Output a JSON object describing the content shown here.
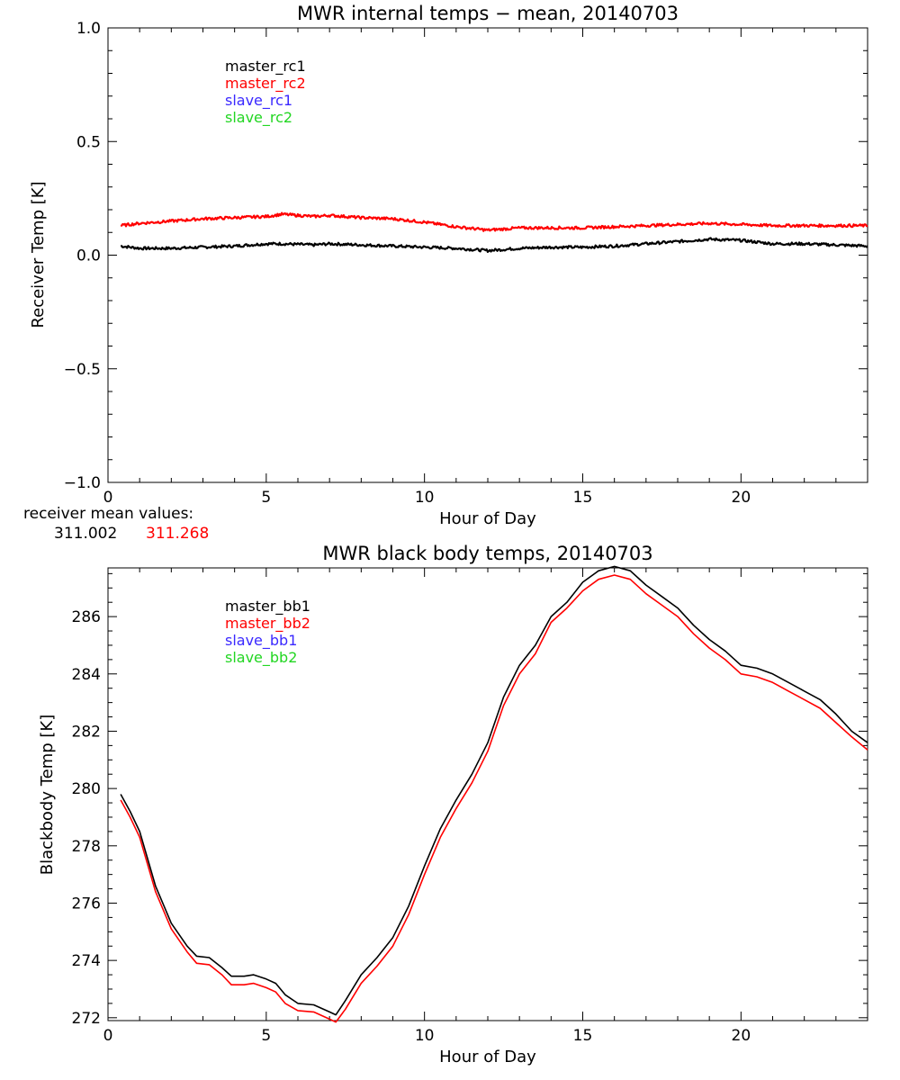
{
  "chart_data": [
    {
      "type": "line",
      "title": "MWR internal temps − mean, 20140703",
      "xlabel": "Hour of Day",
      "ylabel": "Receiver Temp [K]",
      "xlim": [
        0,
        24
      ],
      "ylim": [
        -1.0,
        1.0
      ],
      "x_ticks": [
        0,
        5,
        10,
        15,
        20
      ],
      "x_tick_labels": [
        "0",
        "5",
        "10",
        "15",
        "20"
      ],
      "y_ticks": [
        -1.0,
        -0.5,
        0.0,
        0.5,
        1.0
      ],
      "y_tick_labels": [
        "−1.0",
        "−0.5",
        "0.0",
        "0.5",
        "1.0"
      ],
      "grid": false,
      "legend_position": "top-left",
      "legend": [
        {
          "name": "master_rc1",
          "color": "#000000"
        },
        {
          "name": "master_rc2",
          "color": "#ff0000"
        },
        {
          "name": "slave_rc1",
          "color": "#3a28ff"
        },
        {
          "name": "slave_rc2",
          "color": "#22d622"
        }
      ],
      "series": [
        {
          "name": "master_rc1",
          "color": "#000000",
          "x": [
            0.4,
            1.0,
            2.0,
            3.0,
            4.0,
            5.0,
            5.5,
            6.5,
            7.0,
            8.0,
            9.0,
            10.0,
            11.0,
            12.0,
            13.0,
            14.0,
            15.0,
            16.0,
            17.0,
            18.0,
            19.0,
            20.0,
            21.0,
            22.0,
            23.0,
            24.0
          ],
          "y": [
            0.04,
            0.03,
            0.03,
            0.035,
            0.04,
            0.05,
            0.05,
            0.045,
            0.05,
            0.045,
            0.04,
            0.035,
            0.03,
            0.02,
            0.03,
            0.035,
            0.035,
            0.04,
            0.05,
            0.06,
            0.07,
            0.065,
            0.05,
            0.05,
            0.045,
            0.04
          ]
        },
        {
          "name": "master_rc2",
          "color": "#ff0000",
          "x": [
            0.4,
            1.0,
            2.0,
            3.0,
            4.0,
            5.0,
            5.5,
            6.5,
            7.0,
            8.0,
            9.0,
            10.0,
            11.0,
            12.0,
            13.0,
            14.0,
            15.0,
            16.0,
            17.0,
            18.0,
            19.0,
            20.0,
            21.0,
            22.0,
            23.0,
            24.0
          ],
          "y": [
            0.13,
            0.14,
            0.15,
            0.16,
            0.165,
            0.17,
            0.18,
            0.17,
            0.175,
            0.165,
            0.16,
            0.145,
            0.125,
            0.11,
            0.12,
            0.12,
            0.12,
            0.125,
            0.13,
            0.135,
            0.14,
            0.135,
            0.13,
            0.13,
            0.13,
            0.13
          ]
        }
      ],
      "annotation_label": "receiver mean values:",
      "annotation_values": [
        {
          "text": "311.002",
          "color": "#000000"
        },
        {
          "text": "311.268",
          "color": "#ff0000"
        }
      ]
    },
    {
      "type": "line",
      "title": "MWR black body temps, 20140703",
      "xlabel": "Hour of Day",
      "ylabel": "Blackbody Temp [K]",
      "xlim": [
        0,
        24
      ],
      "ylim": [
        271.9,
        287.7
      ],
      "x_ticks": [
        0,
        5,
        10,
        15,
        20
      ],
      "x_tick_labels": [
        "0",
        "5",
        "10",
        "15",
        "20"
      ],
      "y_ticks": [
        272,
        274,
        276,
        278,
        280,
        282,
        284,
        286
      ],
      "y_tick_labels": [
        "272",
        "274",
        "276",
        "278",
        "280",
        "282",
        "284",
        "286"
      ],
      "grid": false,
      "legend_position": "top-left",
      "legend": [
        {
          "name": "master_bb1",
          "color": "#000000"
        },
        {
          "name": "master_bb2",
          "color": "#ff0000"
        },
        {
          "name": "slave_bb1",
          "color": "#3a28ff"
        },
        {
          "name": "slave_bb2",
          "color": "#22d622"
        }
      ],
      "series": [
        {
          "name": "master_bb1",
          "color": "#000000",
          "x": [
            0.4,
            0.7,
            1.0,
            1.5,
            2.0,
            2.5,
            2.8,
            3.2,
            3.6,
            3.9,
            4.3,
            4.6,
            5.0,
            5.3,
            5.6,
            6.0,
            6.5,
            7.0,
            7.2,
            7.5,
            8.0,
            8.5,
            9.0,
            9.5,
            10.0,
            10.5,
            11.0,
            11.5,
            12.0,
            12.5,
            13.0,
            13.5,
            14.0,
            14.5,
            15.0,
            15.5,
            16.0,
            16.5,
            17.0,
            17.5,
            18.0,
            18.5,
            19.0,
            19.5,
            20.0,
            20.5,
            21.0,
            21.5,
            22.0,
            22.5,
            23.0,
            23.5,
            24.0
          ],
          "y": [
            279.8,
            279.2,
            278.5,
            276.6,
            275.3,
            274.5,
            274.15,
            274.1,
            273.75,
            273.45,
            273.45,
            273.5,
            273.35,
            273.2,
            272.8,
            272.5,
            272.45,
            272.2,
            272.1,
            272.6,
            273.5,
            274.1,
            274.8,
            275.9,
            277.3,
            278.6,
            279.6,
            280.5,
            281.6,
            283.2,
            284.3,
            285.0,
            286.0,
            286.5,
            287.2,
            287.6,
            287.75,
            287.6,
            287.1,
            286.7,
            286.3,
            285.7,
            285.2,
            284.8,
            284.3,
            284.2,
            284.0,
            283.7,
            283.4,
            283.1,
            282.6,
            282.0,
            281.6
          ]
        },
        {
          "name": "master_bb2",
          "color": "#ff0000",
          "x": [
            0.4,
            0.7,
            1.0,
            1.5,
            2.0,
            2.5,
            2.8,
            3.2,
            3.6,
            3.9,
            4.3,
            4.6,
            5.0,
            5.3,
            5.6,
            6.0,
            6.5,
            7.0,
            7.2,
            7.5,
            8.0,
            8.5,
            9.0,
            9.5,
            10.0,
            10.5,
            11.0,
            11.5,
            12.0,
            12.5,
            13.0,
            13.5,
            14.0,
            14.5,
            15.0,
            15.5,
            16.0,
            16.5,
            17.0,
            17.5,
            18.0,
            18.5,
            19.0,
            19.5,
            20.0,
            20.5,
            21.0,
            21.5,
            22.0,
            22.5,
            23.0,
            23.5,
            24.0
          ],
          "y": [
            279.6,
            279.0,
            278.3,
            276.4,
            275.1,
            274.3,
            273.9,
            273.85,
            273.5,
            273.15,
            273.15,
            273.2,
            273.05,
            272.9,
            272.5,
            272.25,
            272.2,
            271.95,
            271.85,
            272.3,
            273.2,
            273.8,
            274.5,
            275.6,
            277.0,
            278.3,
            279.3,
            280.2,
            281.3,
            282.9,
            284.0,
            284.7,
            285.8,
            286.3,
            286.9,
            287.3,
            287.45,
            287.3,
            286.8,
            286.4,
            286.0,
            285.4,
            284.9,
            284.5,
            284.0,
            283.9,
            283.7,
            283.4,
            283.1,
            282.8,
            282.3,
            281.8,
            281.35
          ]
        }
      ]
    }
  ]
}
